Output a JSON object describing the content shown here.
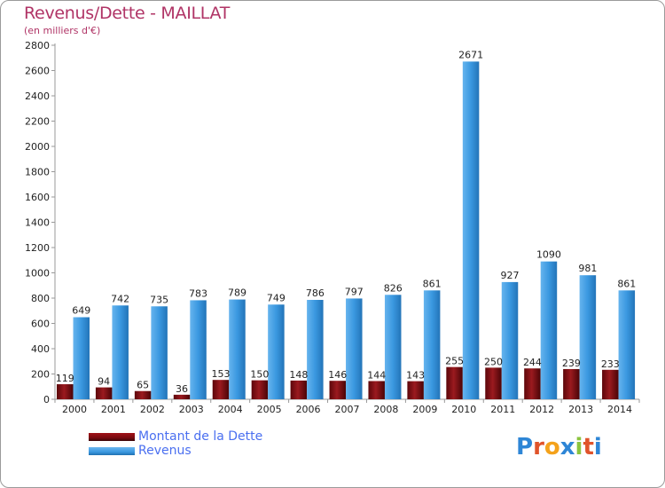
{
  "header": {
    "title": "Revenus/Dette - MAILLAT",
    "subtitle": "(en milliers d'€)"
  },
  "legend": {
    "debt_label": "Montant de la Dette",
    "revenue_label": "Revenus"
  },
  "logo": {
    "text": "Proxiti",
    "colors": [
      "#2e86d6",
      "#e0532a",
      "#f4a21b",
      "#2e86d6",
      "#8bc43f",
      "#e0532a",
      "#2e86d6"
    ]
  },
  "colors": {
    "debt": "#7a0b10",
    "revenue": "#3a98e0",
    "axis": "#999999",
    "grid_label": "#222222"
  },
  "chart_data": {
    "type": "bar",
    "title": "Revenus/Dette - MAILLAT",
    "subtitle": "(en milliers d'€)",
    "categories": [
      "2000",
      "2001",
      "2002",
      "2003",
      "2004",
      "2005",
      "2006",
      "2007",
      "2008",
      "2009",
      "2010",
      "2011",
      "2012",
      "2013",
      "2014"
    ],
    "series": [
      {
        "name": "Montant de la Dette",
        "values": [
          119,
          94,
          65,
          36,
          153,
          150,
          148,
          146,
          144,
          143,
          255,
          250,
          244,
          239,
          233
        ]
      },
      {
        "name": "Revenus",
        "values": [
          649,
          742,
          735,
          783,
          789,
          749,
          786,
          797,
          826,
          861,
          2671,
          927,
          1090,
          981,
          861
        ]
      }
    ],
    "ylim": [
      0,
      2800
    ],
    "yticks": [
      0,
      200,
      400,
      600,
      800,
      1000,
      1200,
      1400,
      1600,
      1800,
      2000,
      2200,
      2400,
      2600,
      2800
    ],
    "legend_position": "bottom-left",
    "grid": false
  }
}
